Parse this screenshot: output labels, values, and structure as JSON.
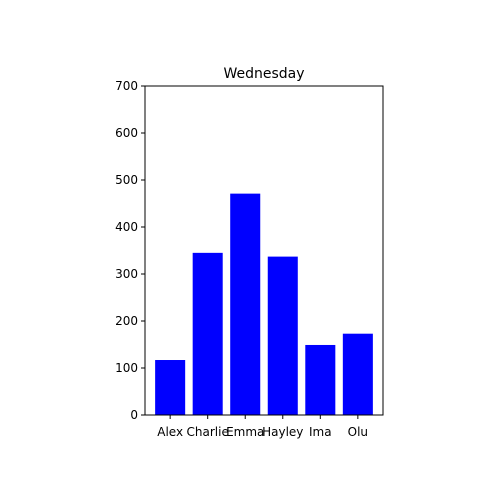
{
  "chart_data": {
    "type": "bar",
    "title": "Wednesday",
    "xlabel": "",
    "ylabel": "",
    "categories": [
      "Alex",
      "Charlie",
      "Emma",
      "Hayley",
      "Ima",
      "Olu"
    ],
    "values": [
      117,
      345,
      471,
      337,
      149,
      173
    ],
    "ylim": [
      0,
      700
    ],
    "yticks": [
      0,
      100,
      200,
      300,
      400,
      500,
      600,
      700
    ],
    "grid": false,
    "bar_color": "#0000ff"
  }
}
